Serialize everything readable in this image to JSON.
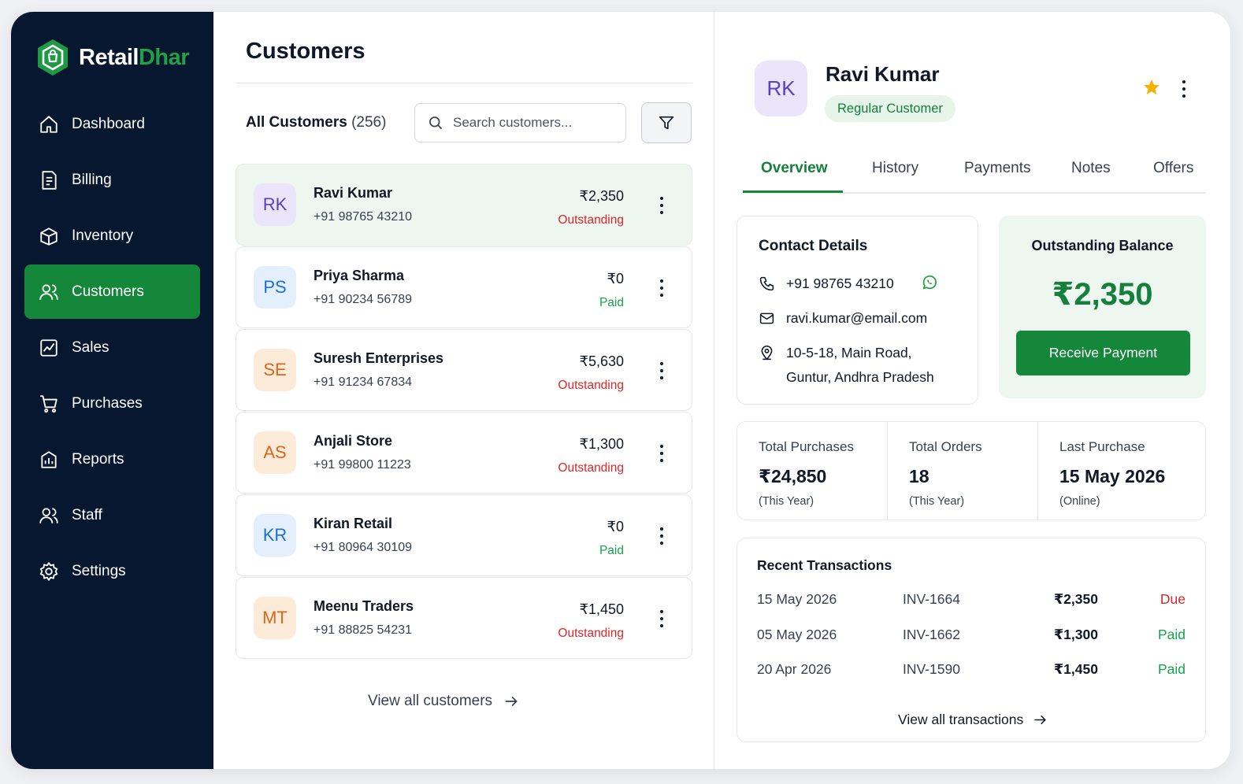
{
  "brand": {
    "name_part1": "Retail",
    "name_part2": "Dhar"
  },
  "nav": [
    {
      "label": "Dashboard",
      "icon": "home-icon"
    },
    {
      "label": "Billing",
      "icon": "receipt-icon"
    },
    {
      "label": "Inventory",
      "icon": "box-icon"
    },
    {
      "label": "Customers",
      "icon": "users-icon",
      "active": true
    },
    {
      "label": "Sales",
      "icon": "chart-icon"
    },
    {
      "label": "Purchases",
      "icon": "cart-icon"
    },
    {
      "label": "Reports",
      "icon": "building-icon"
    },
    {
      "label": "Staff",
      "icon": "staff-icon"
    },
    {
      "label": "Settings",
      "icon": "gear-icon"
    }
  ],
  "list": {
    "title": "Customers",
    "count_label": "All Customers",
    "count": "(256)",
    "search_placeholder": "Search customers...",
    "view_all": "View all customers",
    "customers": [
      {
        "initials": "RK",
        "name": "Ravi Kumar",
        "phone": "+91 98765 43210",
        "amount": "₹2,350",
        "status": "Outstanding",
        "color": "purple"
      },
      {
        "initials": "PS",
        "name": "Priya Sharma",
        "phone": "+91 90234 56789",
        "amount": "₹0",
        "status": "Paid",
        "color": "blue"
      },
      {
        "initials": "SE",
        "name": "Suresh Enterprises",
        "phone": "+91 91234 67834",
        "amount": "₹5,630",
        "status": "Outstanding",
        "color": "orange"
      },
      {
        "initials": "AS",
        "name": "Anjali Store",
        "phone": "+91 99800 11223",
        "amount": "₹1,300",
        "status": "Outstanding",
        "color": "orange"
      },
      {
        "initials": "KR",
        "name": "Kiran Retail",
        "phone": "+91 80964 30109",
        "amount": "₹0",
        "status": "Paid",
        "color": "blue"
      },
      {
        "initials": "MT",
        "name": "Meenu Traders",
        "phone": "+91 88825 54231",
        "amount": "₹1,450",
        "status": "Outstanding",
        "color": "orange"
      }
    ]
  },
  "detail": {
    "initials": "RK",
    "name": "Ravi Kumar",
    "badge": "Regular Customer",
    "tabs": [
      "Overview",
      "History",
      "Payments",
      "Notes",
      "Offers"
    ],
    "contact": {
      "title": "Contact Details",
      "phone": "+91 98765 43210",
      "email": "ravi.kumar@email.com",
      "address_line1": "10-5-18, Main Road,",
      "address_line2": "Guntur, Andhra Pradesh"
    },
    "balance": {
      "title": "Outstanding Balance",
      "amount": "₹2,350",
      "button": "Receive Payment"
    },
    "stats": [
      {
        "label": "Total Purchases",
        "value": "₹24,850",
        "sub": "(This Year)"
      },
      {
        "label": "Total Orders",
        "value": "18",
        "sub": "(This Year)"
      },
      {
        "label": "Last Purchase",
        "value": "15 May 2026",
        "sub": "(Online)"
      }
    ],
    "recent": {
      "title": "Recent Transactions",
      "rows": [
        {
          "date": "15 May 2026",
          "invoice": "INV-1664",
          "amount": "₹2,350",
          "status": "Due"
        },
        {
          "date": "05 May 2026",
          "invoice": "INV-1662",
          "amount": "₹1,300",
          "status": "Paid"
        },
        {
          "date": "20 Apr 2026",
          "invoice": "INV-1590",
          "amount": "₹1,450",
          "status": "Paid"
        }
      ],
      "view_all": "View all transactions"
    }
  },
  "colors": {
    "sidebar_bg": "#07172f",
    "accent_green": "#15873a",
    "outstanding_red": "#dc2626",
    "paid_green": "#16a34a",
    "star": "#f5b301"
  }
}
